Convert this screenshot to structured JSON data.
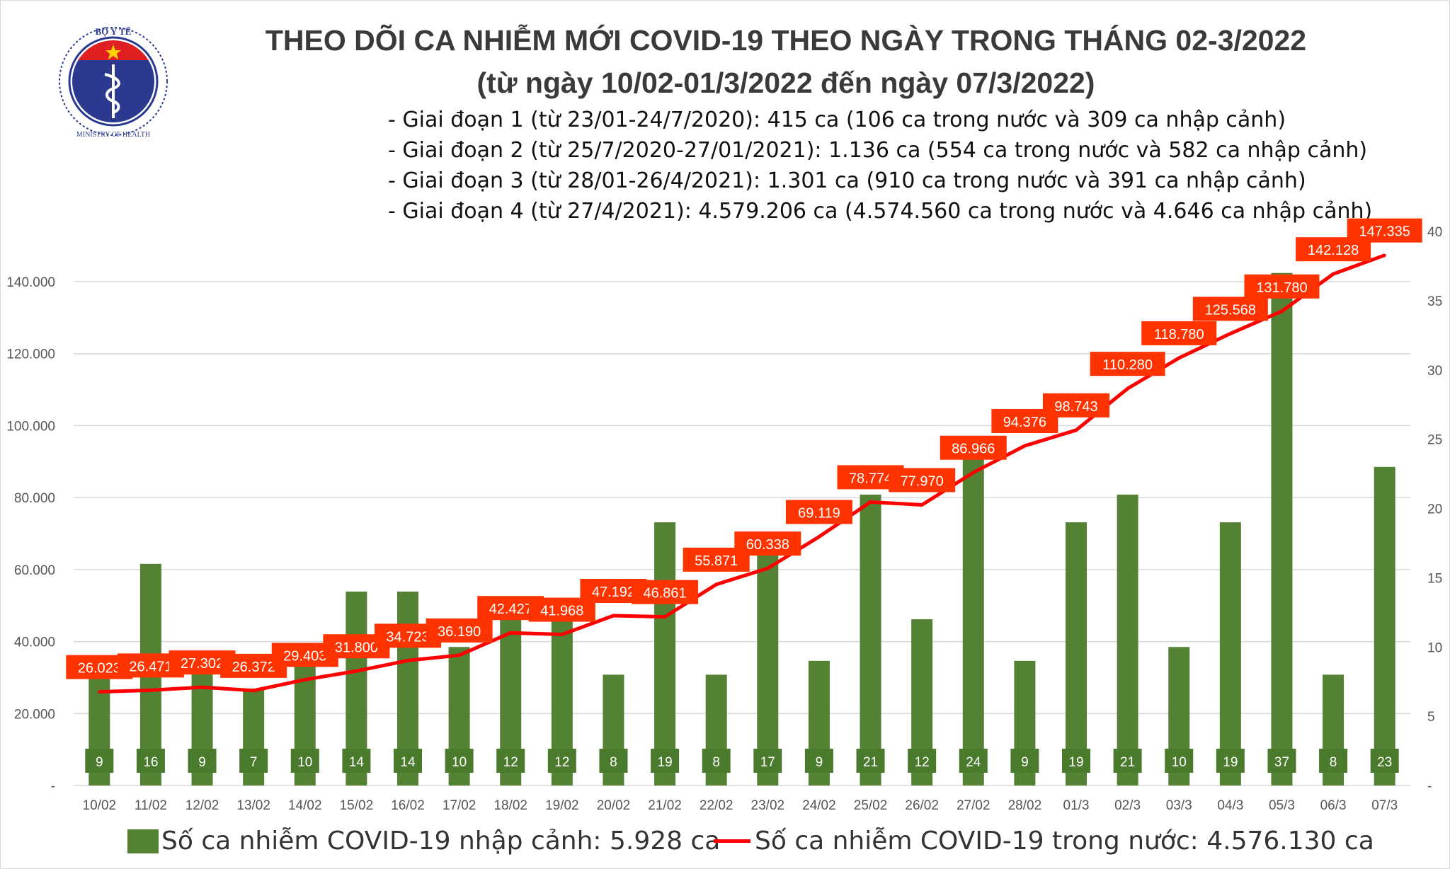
{
  "logo": {
    "top_text": "BỘ Y TẾ",
    "bottom_text": "MINISTRY OF HEALTH"
  },
  "title": {
    "line1": "THEO DÕI CA NHIỄM MỚI COVID-19 THEO NGÀY TRONG THÁNG 02-3/2022",
    "line2": "(từ ngày 10/02-01/3/2022 đến ngày 07/3/2022)"
  },
  "phases": [
    "- Giai đoạn 1 (từ 23/01-24/7/2020): 415 ca (106 ca trong nước và 309 ca nhập cảnh)",
    "- Giai đoạn 2 (từ 25/7/2020-27/01/2021): 1.136 ca (554 ca trong nước và 582 ca nhập cảnh)",
    "- Giai đoạn 3 (từ 28/01-26/4/2021): 1.301 ca (910 ca trong nước và 391 ca nhập cảnh)",
    "- Giai đoạn 4 (từ 27/4/2021): 4.579.206 ca (4.574.560 ca trong nước và 4.646 ca nhập cảnh)"
  ],
  "chart_data": {
    "type": "bar+line",
    "categories": [
      "10/02",
      "11/02",
      "12/02",
      "13/02",
      "14/02",
      "15/02",
      "16/02",
      "17/02",
      "18/02",
      "19/02",
      "20/02",
      "21/02",
      "22/02",
      "23/02",
      "24/02",
      "25/02",
      "26/02",
      "27/02",
      "28/02",
      "01/3",
      "02/3",
      "03/3",
      "04/3",
      "05/3",
      "06/3",
      "07/3"
    ],
    "series": [
      {
        "name": "Số ca nhiễm COVID-19 nhập cảnh: 5.928 ca",
        "type": "bar",
        "axis": "right",
        "color": "#548235",
        "values": [
          9,
          16,
          9,
          7,
          10,
          14,
          14,
          10,
          12,
          12,
          8,
          19,
          8,
          17,
          9,
          21,
          12,
          24,
          9,
          19,
          21,
          10,
          19,
          37,
          8,
          23
        ]
      },
      {
        "name": "Số ca nhiễm COVID-19 trong nước: 4.576.130 ca",
        "type": "line",
        "axis": "left",
        "color": "#ff0000",
        "values": [
          26023,
          26471,
          27302,
          26372,
          29403,
          31800,
          34723,
          36190,
          42427,
          41968,
          47192,
          46861,
          55871,
          60338,
          69119,
          78774,
          77970,
          86966,
          94376,
          98743,
          110280,
          118780,
          125568,
          131780,
          142128,
          147335
        ],
        "labels": [
          "26.023",
          "26.471",
          "27.302",
          "26.372",
          "29.403",
          "31.800",
          "34.723",
          "36.190",
          "42.427",
          "41.968",
          "47.192",
          "46.861",
          "55.871",
          "60.338",
          "69.119",
          "78.774",
          "77.970",
          "86.966",
          "94.376",
          "98.743",
          "110.280",
          "118.780",
          "125.568",
          "131.780",
          "142.128",
          "147.335"
        ]
      }
    ],
    "left_axis": {
      "range": [
        0,
        154000
      ],
      "ticks": [
        0,
        20000,
        40000,
        60000,
        80000,
        100000,
        120000,
        140000
      ],
      "tick_labels": [
        "-",
        "20.000",
        "40.000",
        "60.000",
        "80.000",
        "100.000",
        "120.000",
        "140.000"
      ]
    },
    "right_axis": {
      "range": [
        0,
        40
      ],
      "ticks": [
        0,
        5,
        10,
        15,
        20,
        25,
        30,
        35,
        40
      ],
      "tick_labels": [
        "-",
        "5",
        "10",
        "15",
        "20",
        "25",
        "30",
        "35",
        "40"
      ]
    },
    "grid": true,
    "legend_position": "bottom",
    "label_colors": {
      "bar_label_bg": "#4a7a2c",
      "line_label_bg": "#ff3300"
    }
  }
}
